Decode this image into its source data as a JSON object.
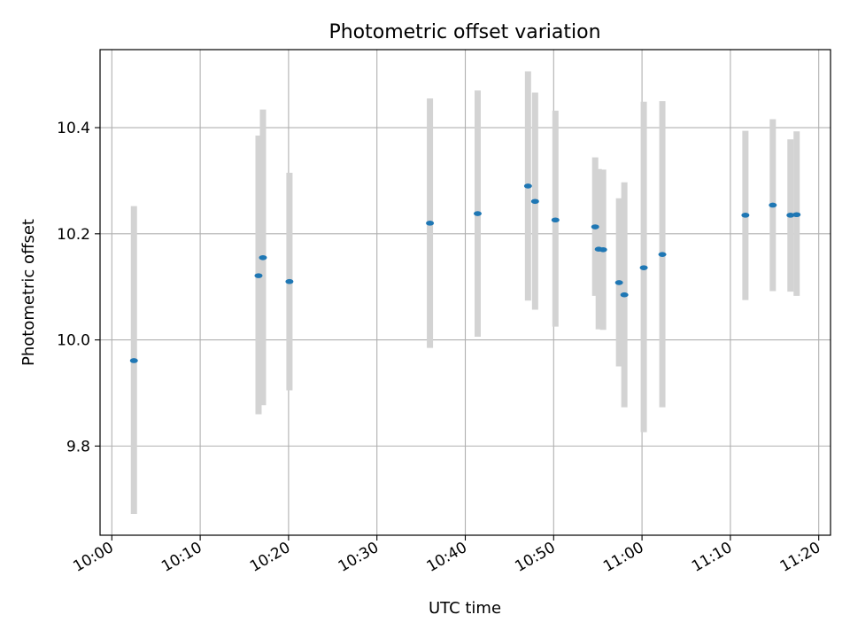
{
  "chart_data": {
    "type": "scatter",
    "title": "Photometric offset variation",
    "xlabel": "UTC time",
    "ylabel": "Photometric offset",
    "x_tick_labels": [
      "10:00",
      "10:10",
      "10:20",
      "10:30",
      "10:40",
      "10:50",
      "11:00",
      "11:10",
      "11:20"
    ],
    "y_tick_labels": [
      "9.8",
      "10.0",
      "10.2",
      "10.4"
    ],
    "y_ticks": [
      9.8,
      10.0,
      10.2,
      10.4
    ],
    "xlim": [
      "09:58:40",
      "11:21:20"
    ],
    "ylim": [
      9.632,
      10.547
    ],
    "grid": true,
    "colors": {
      "point": "#1f77b4",
      "errorbar": "#d3d3d3",
      "grid": "#b0b0b0",
      "axis": "#000000"
    },
    "series": [
      {
        "points": [
          {
            "x": "10:02:30",
            "y": 9.961,
            "ylow": 9.672,
            "yhigh": 10.252
          },
          {
            "x": "10:16:36",
            "y": 10.121,
            "ylow": 9.86,
            "yhigh": 10.385
          },
          {
            "x": "10:17:06",
            "y": 10.155,
            "ylow": 9.877,
            "yhigh": 10.434
          },
          {
            "x": "10:20:06",
            "y": 10.11,
            "ylow": 9.905,
            "yhigh": 10.315
          },
          {
            "x": "10:36:00",
            "y": 10.22,
            "ylow": 9.985,
            "yhigh": 10.455
          },
          {
            "x": "10:41:24",
            "y": 10.238,
            "ylow": 10.006,
            "yhigh": 10.47
          },
          {
            "x": "10:47:06",
            "y": 10.29,
            "ylow": 10.074,
            "yhigh": 10.506
          },
          {
            "x": "10:47:54",
            "y": 10.261,
            "ylow": 10.057,
            "yhigh": 10.466
          },
          {
            "x": "10:50:12",
            "y": 10.226,
            "ylow": 10.025,
            "yhigh": 10.432
          },
          {
            "x": "10:54:42",
            "y": 10.213,
            "ylow": 10.083,
            "yhigh": 10.344
          },
          {
            "x": "10:55:06",
            "y": 10.171,
            "ylow": 10.02,
            "yhigh": 10.322
          },
          {
            "x": "10:55:36",
            "y": 10.17,
            "ylow": 10.019,
            "yhigh": 10.321
          },
          {
            "x": "10:57:24",
            "y": 10.108,
            "ylow": 9.95,
            "yhigh": 10.267
          },
          {
            "x": "10:58:00",
            "y": 10.085,
            "ylow": 9.873,
            "yhigh": 10.297
          },
          {
            "x": "11:00:12",
            "y": 10.136,
            "ylow": 9.826,
            "yhigh": 10.449
          },
          {
            "x": "11:02:18",
            "y": 10.161,
            "ylow": 9.873,
            "yhigh": 10.45
          },
          {
            "x": "11:11:42",
            "y": 10.235,
            "ylow": 10.075,
            "yhigh": 10.394
          },
          {
            "x": "11:14:48",
            "y": 10.254,
            "ylow": 10.092,
            "yhigh": 10.416
          },
          {
            "x": "11:16:48",
            "y": 10.235,
            "ylow": 10.091,
            "yhigh": 10.378
          },
          {
            "x": "11:17:30",
            "y": 10.236,
            "ylow": 10.083,
            "yhigh": 10.393
          }
        ]
      }
    ]
  }
}
